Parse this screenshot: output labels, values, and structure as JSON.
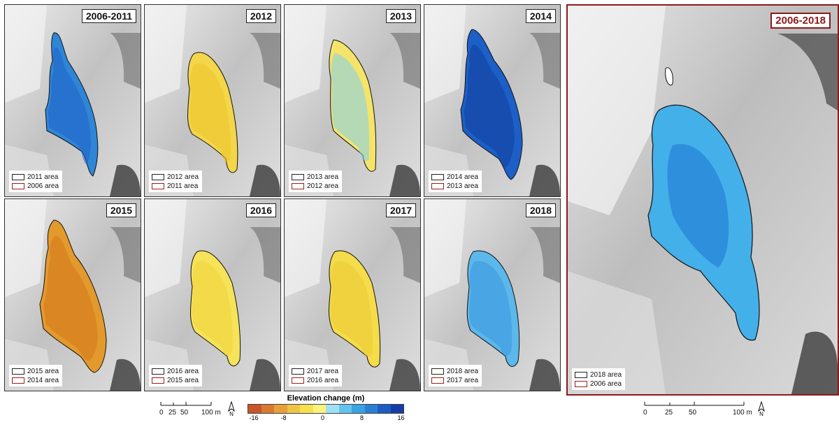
{
  "panels": [
    {
      "year": "2006-2011",
      "legend_new": "2011 area",
      "legend_old": "2006 area",
      "fill": "#2f86d6",
      "fill_core": "#1f62c8"
    },
    {
      "year": "2012",
      "legend_new": "2012 area",
      "legend_old": "2011 area",
      "fill": "#f3d64a",
      "fill_core": "#ecc42a"
    },
    {
      "year": "2013",
      "legend_new": "2013 area",
      "legend_old": "2012 area",
      "fill": "#f5e46a",
      "fill_core": "#7fd0f0"
    },
    {
      "year": "2014",
      "legend_new": "2014 area",
      "legend_old": "2013 area",
      "fill": "#1c5fc6",
      "fill_core": "#123e9c"
    },
    {
      "year": "2015",
      "legend_new": "2015 area",
      "legend_old": "2014 area",
      "fill": "#e39a2c",
      "fill_core": "#d4791e"
    },
    {
      "year": "2016",
      "legend_new": "2016 area",
      "legend_old": "2015 area",
      "fill": "#f6e35a",
      "fill_core": "#f1d43a"
    },
    {
      "year": "2017",
      "legend_new": "2017 area",
      "legend_old": "2016 area",
      "fill": "#f4dc4a",
      "fill_core": "#edc834"
    },
    {
      "year": "2018",
      "legend_new": "2018 area",
      "legend_old": "2017 area",
      "fill": "#5cb7ea",
      "fill_core": "#3a98dc"
    }
  ],
  "summary_panel": {
    "year": "2006-2018",
    "legend_new": "2018 area",
    "legend_old": "2006 area",
    "fill": "#44b0ea",
    "fill_core": "#2e8fdc"
  },
  "scale_small": {
    "ticks": [
      "0",
      "25",
      "50"
    ],
    "end_label": "100 m",
    "north": "N"
  },
  "scale_large": {
    "ticks": [
      "0",
      "25",
      "50"
    ],
    "end_label": "100 m",
    "north": "N"
  },
  "colorbar": {
    "title": "Elevation change (m)",
    "tick_labels": [
      "-16",
      "-8",
      "0",
      "8",
      "16"
    ],
    "colors": [
      "#c8552a",
      "#d87a30",
      "#e5a03a",
      "#efc344",
      "#f6e04e",
      "#fbf27a",
      "#9ee0f4",
      "#62c3ee",
      "#3aa3e2",
      "#2a7fd4",
      "#1e5cc2",
      "#143ea6"
    ]
  }
}
